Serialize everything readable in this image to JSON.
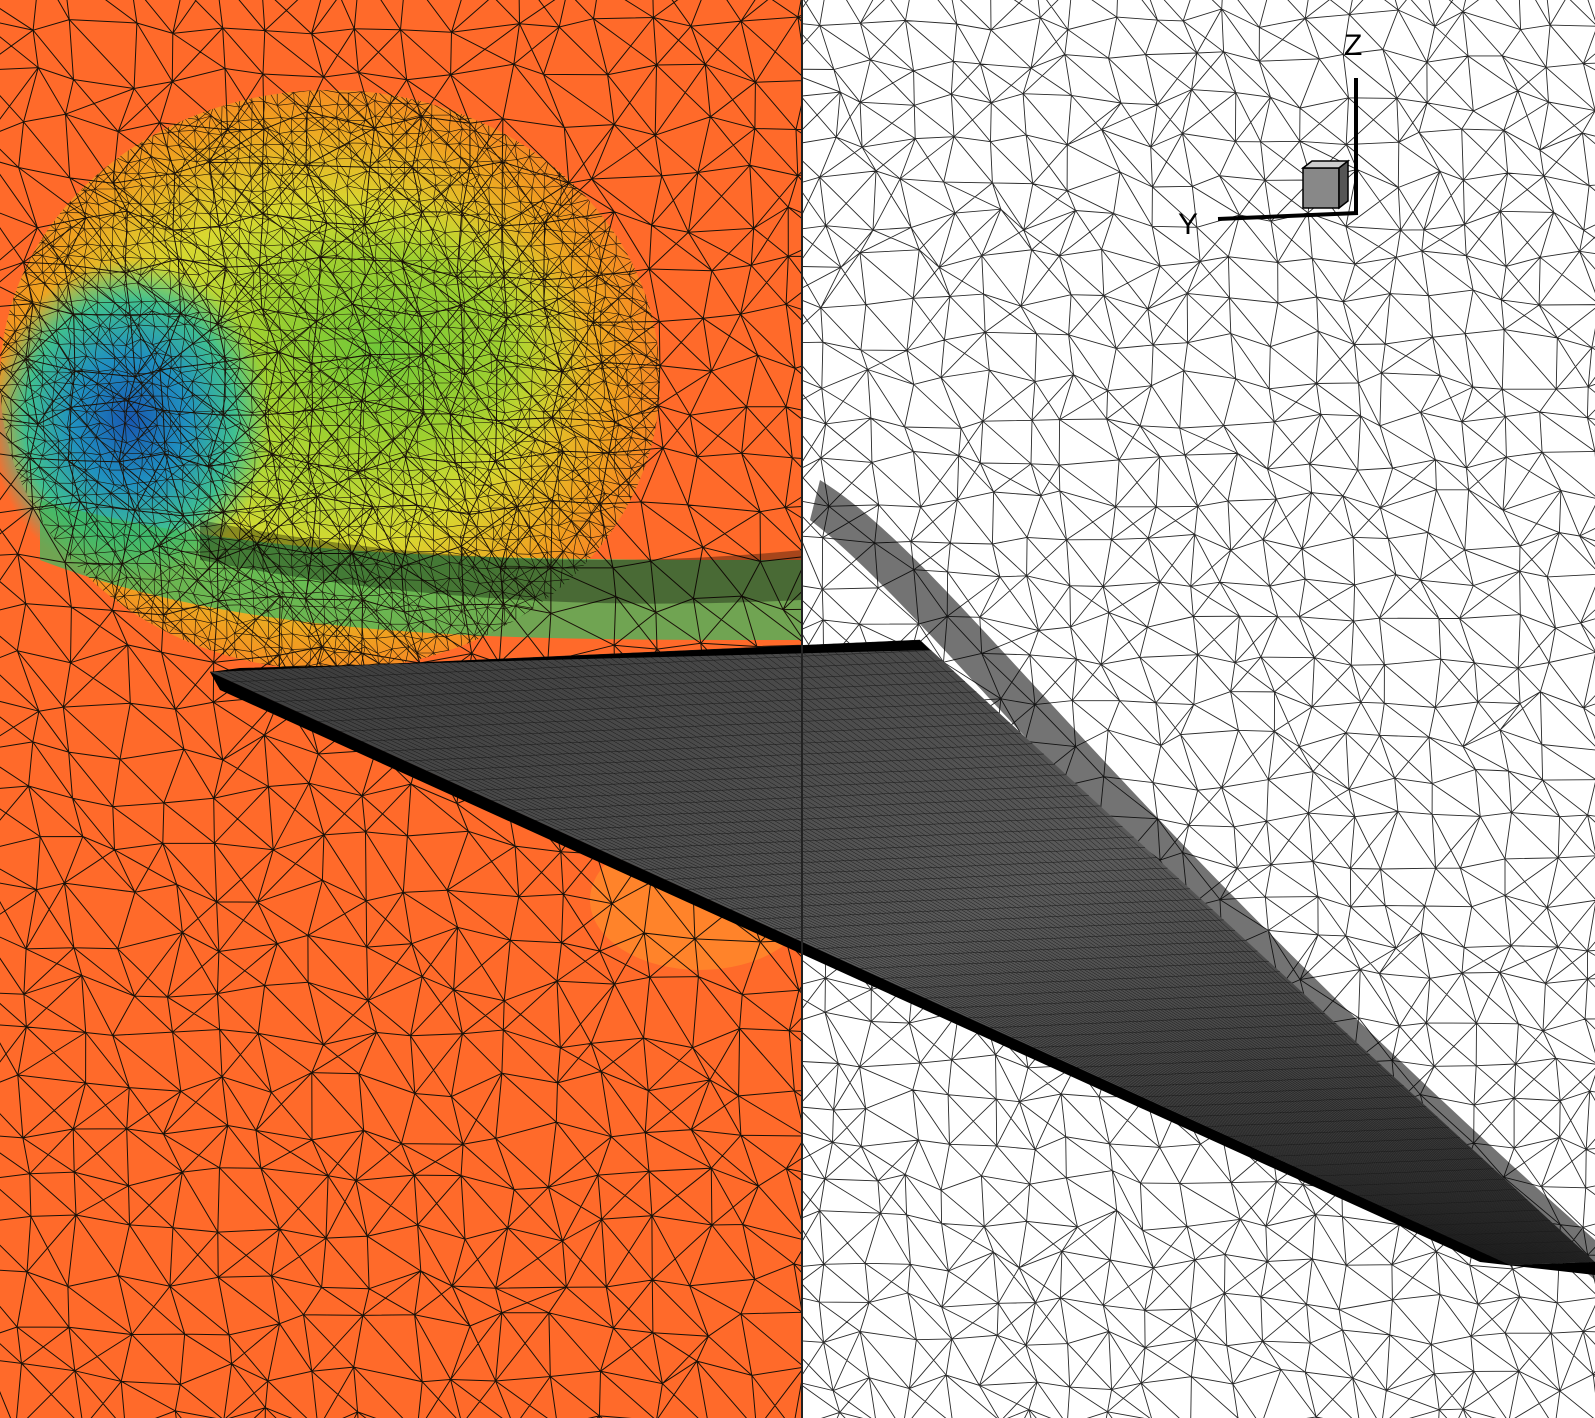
{
  "colors": {
    "cut_plane_background": "#ff6a2a",
    "mesh_line": "#1a1108",
    "mesh_line_white_side": "#2a2a2a",
    "surface_mesh": "#555555",
    "vortex_colormap": [
      "#ff6a2a",
      "#f0a020",
      "#d8d820",
      "#a8e030",
      "#50c850",
      "#20a8b0",
      "#1050a8"
    ],
    "white_background": "#ffffff"
  },
  "orientation_axes": {
    "z_label": "Z",
    "y_label": "Y",
    "icon": "axis-cube-icon"
  }
}
